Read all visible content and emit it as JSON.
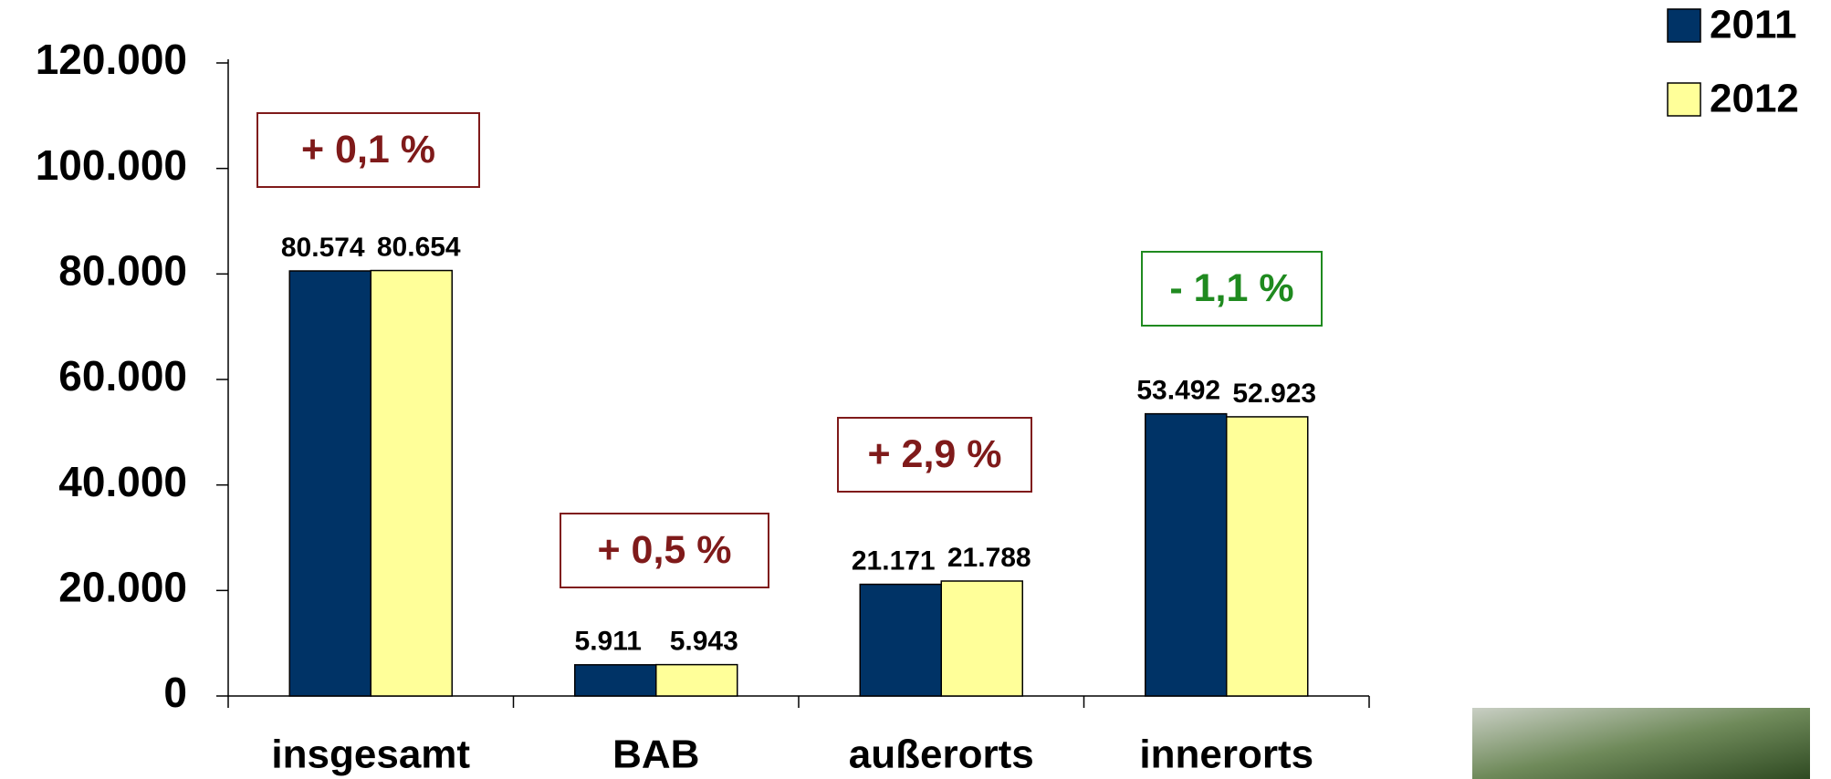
{
  "chart_data": {
    "type": "bar",
    "categories": [
      "insgesamt",
      "BAB",
      "außerorts",
      "innerorts"
    ],
    "series": [
      {
        "name": "2011",
        "color": "#003366",
        "values": [
          80574,
          5911,
          21171,
          53492
        ],
        "value_labels": [
          "80.574",
          "5.911",
          "21.171",
          "53.492"
        ]
      },
      {
        "name": "2012",
        "color": "#ffff99",
        "values": [
          80654,
          5943,
          21788,
          52923
        ],
        "value_labels": [
          "80.654",
          "5.943",
          "21.788",
          "52.923"
        ]
      }
    ],
    "ylim": [
      0,
      120000
    ],
    "yticks": [
      0,
      {
        "value": 20000,
        "label": "20.000"
      },
      {
        "value": 40000,
        "label": "40.000"
      },
      {
        "value": 60000,
        "label": "60.000"
      },
      {
        "value": 80000,
        "label": "80.000"
      },
      {
        "value": 100000,
        "label": "100.000"
      },
      {
        "value": 120000,
        "label": "120.000"
      }
    ],
    "annotations": [
      {
        "text": "+ 0,1 %",
        "color": "#7f1a1a"
      },
      {
        "text": "+ 0,5 %",
        "color": "#7f1a1a"
      },
      {
        "text": "+ 2,9 %",
        "color": "#7f1a1a"
      },
      {
        "text": "- 1,1 %",
        "color": "#1f8a1f"
      }
    ],
    "legend": "top-right"
  }
}
